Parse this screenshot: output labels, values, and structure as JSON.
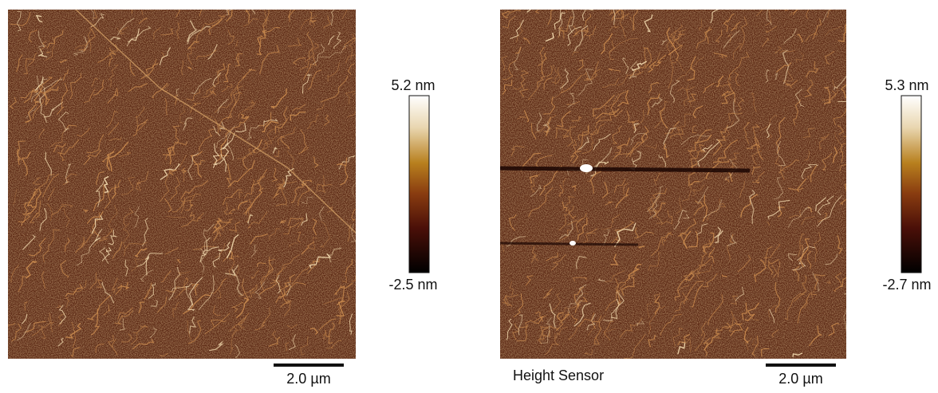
{
  "panels": [
    {
      "colorbar": {
        "max": "5.2 nm",
        "min": "-2.5 nm"
      },
      "scale_bar": "2.0 µm"
    },
    {
      "caption": "Height Sensor",
      "colorbar": {
        "max": "5.3 nm",
        "min": "-2.7 nm"
      },
      "scale_bar": "2.0 µm"
    }
  ]
}
